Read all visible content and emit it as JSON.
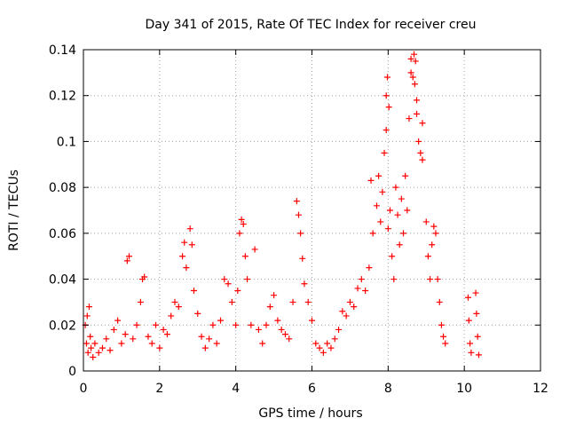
{
  "chart_data": {
    "type": "scatter",
    "title": "Day 341 of 2015, Rate Of TEC Index for receiver creu",
    "xlabel": "GPS time / hours",
    "ylabel": "ROTI / TECUs",
    "xlim": [
      0,
      12
    ],
    "ylim": [
      0,
      0.14
    ],
    "xticks": [
      0,
      2,
      4,
      6,
      8,
      10,
      12
    ],
    "yticks": [
      0,
      0.02,
      0.04,
      0.06,
      0.08,
      0.1,
      0.12,
      0.14
    ],
    "xtick_labels": [
      "0",
      "2",
      "4",
      "6",
      "8",
      "10",
      "12"
    ],
    "ytick_labels": [
      "0",
      "0.02",
      "0.04",
      "0.06",
      "0.08",
      "0.1",
      "0.12",
      "0.14"
    ],
    "grid": true,
    "marker": "+",
    "color": "#ff0000",
    "series": [
      {
        "name": "ROTI",
        "points": [
          [
            0.05,
            0.02
          ],
          [
            0.08,
            0.012
          ],
          [
            0.1,
            0.024
          ],
          [
            0.12,
            0.008
          ],
          [
            0.15,
            0.028
          ],
          [
            0.18,
            0.015
          ],
          [
            0.2,
            0.01
          ],
          [
            0.25,
            0.006
          ],
          [
            0.3,
            0.012
          ],
          [
            0.4,
            0.008
          ],
          [
            0.5,
            0.01
          ],
          [
            0.6,
            0.014
          ],
          [
            0.7,
            0.009
          ],
          [
            0.8,
            0.018
          ],
          [
            0.9,
            0.022
          ],
          [
            1.0,
            0.012
          ],
          [
            1.1,
            0.016
          ],
          [
            1.15,
            0.048
          ],
          [
            1.2,
            0.05
          ],
          [
            1.3,
            0.014
          ],
          [
            1.4,
            0.02
          ],
          [
            1.5,
            0.03
          ],
          [
            1.55,
            0.04
          ],
          [
            1.6,
            0.041
          ],
          [
            1.7,
            0.015
          ],
          [
            1.8,
            0.012
          ],
          [
            1.9,
            0.02
          ],
          [
            2.0,
            0.01
          ],
          [
            2.1,
            0.018
          ],
          [
            2.2,
            0.016
          ],
          [
            2.3,
            0.024
          ],
          [
            2.4,
            0.03
          ],
          [
            2.5,
            0.028
          ],
          [
            2.6,
            0.05
          ],
          [
            2.65,
            0.056
          ],
          [
            2.7,
            0.045
          ],
          [
            2.8,
            0.062
          ],
          [
            2.85,
            0.055
          ],
          [
            2.9,
            0.035
          ],
          [
            3.0,
            0.025
          ],
          [
            3.1,
            0.015
          ],
          [
            3.2,
            0.01
          ],
          [
            3.3,
            0.014
          ],
          [
            3.4,
            0.02
          ],
          [
            3.5,
            0.012
          ],
          [
            3.6,
            0.022
          ],
          [
            3.7,
            0.04
          ],
          [
            3.8,
            0.038
          ],
          [
            3.9,
            0.03
          ],
          [
            4.0,
            0.02
          ],
          [
            4.05,
            0.035
          ],
          [
            4.1,
            0.06
          ],
          [
            4.15,
            0.066
          ],
          [
            4.2,
            0.064
          ],
          [
            4.25,
            0.05
          ],
          [
            4.3,
            0.04
          ],
          [
            4.4,
            0.02
          ],
          [
            4.5,
            0.053
          ],
          [
            4.6,
            0.018
          ],
          [
            4.7,
            0.012
          ],
          [
            4.8,
            0.02
          ],
          [
            4.9,
            0.028
          ],
          [
            5.0,
            0.033
          ],
          [
            5.1,
            0.022
          ],
          [
            5.2,
            0.018
          ],
          [
            5.3,
            0.016
          ],
          [
            5.4,
            0.014
          ],
          [
            5.5,
            0.03
          ],
          [
            5.6,
            0.074
          ],
          [
            5.65,
            0.068
          ],
          [
            5.7,
            0.06
          ],
          [
            5.75,
            0.049
          ],
          [
            5.8,
            0.038
          ],
          [
            5.9,
            0.03
          ],
          [
            6.0,
            0.022
          ],
          [
            6.1,
            0.012
          ],
          [
            6.2,
            0.01
          ],
          [
            6.3,
            0.008
          ],
          [
            6.4,
            0.012
          ],
          [
            6.5,
            0.01
          ],
          [
            6.6,
            0.014
          ],
          [
            6.7,
            0.018
          ],
          [
            6.8,
            0.026
          ],
          [
            6.9,
            0.024
          ],
          [
            7.0,
            0.03
          ],
          [
            7.1,
            0.028
          ],
          [
            7.2,
            0.036
          ],
          [
            7.3,
            0.04
          ],
          [
            7.4,
            0.035
          ],
          [
            7.5,
            0.045
          ],
          [
            7.55,
            0.083
          ],
          [
            7.6,
            0.06
          ],
          [
            7.7,
            0.072
          ],
          [
            7.75,
            0.085
          ],
          [
            7.8,
            0.065
          ],
          [
            7.85,
            0.078
          ],
          [
            7.9,
            0.095
          ],
          [
            7.95,
            0.105
          ],
          [
            8.0,
            0.062
          ],
          [
            8.05,
            0.07
          ],
          [
            8.1,
            0.05
          ],
          [
            8.15,
            0.04
          ],
          [
            8.2,
            0.08
          ],
          [
            8.25,
            0.068
          ],
          [
            8.3,
            0.055
          ],
          [
            8.35,
            0.075
          ],
          [
            8.4,
            0.06
          ],
          [
            8.45,
            0.085
          ],
          [
            8.5,
            0.07
          ],
          [
            8.55,
            0.11
          ],
          [
            8.6,
            0.136
          ],
          [
            8.65,
            0.128
          ],
          [
            8.7,
            0.125
          ],
          [
            8.75,
            0.118
          ],
          [
            8.8,
            0.1
          ],
          [
            8.85,
            0.095
          ],
          [
            8.9,
            0.092
          ],
          [
            9.0,
            0.065
          ],
          [
            9.05,
            0.05
          ],
          [
            9.1,
            0.04
          ],
          [
            9.15,
            0.055
          ],
          [
            9.2,
            0.063
          ],
          [
            9.25,
            0.06
          ],
          [
            9.3,
            0.04
          ],
          [
            9.35,
            0.03
          ],
          [
            9.4,
            0.02
          ],
          [
            9.45,
            0.015
          ],
          [
            9.5,
            0.012
          ],
          [
            7.95,
            0.12
          ],
          [
            7.98,
            0.128
          ],
          [
            8.02,
            0.115
          ],
          [
            8.6,
            0.13
          ],
          [
            8.72,
            0.135
          ],
          [
            8.68,
            0.138
          ],
          [
            8.75,
            0.112
          ],
          [
            8.9,
            0.108
          ],
          [
            10.1,
            0.032
          ],
          [
            10.12,
            0.022
          ],
          [
            10.15,
            0.012
          ],
          [
            10.18,
            0.008
          ],
          [
            10.3,
            0.034
          ],
          [
            10.32,
            0.025
          ],
          [
            10.35,
            0.015
          ],
          [
            10.38,
            0.007
          ]
        ]
      }
    ]
  }
}
